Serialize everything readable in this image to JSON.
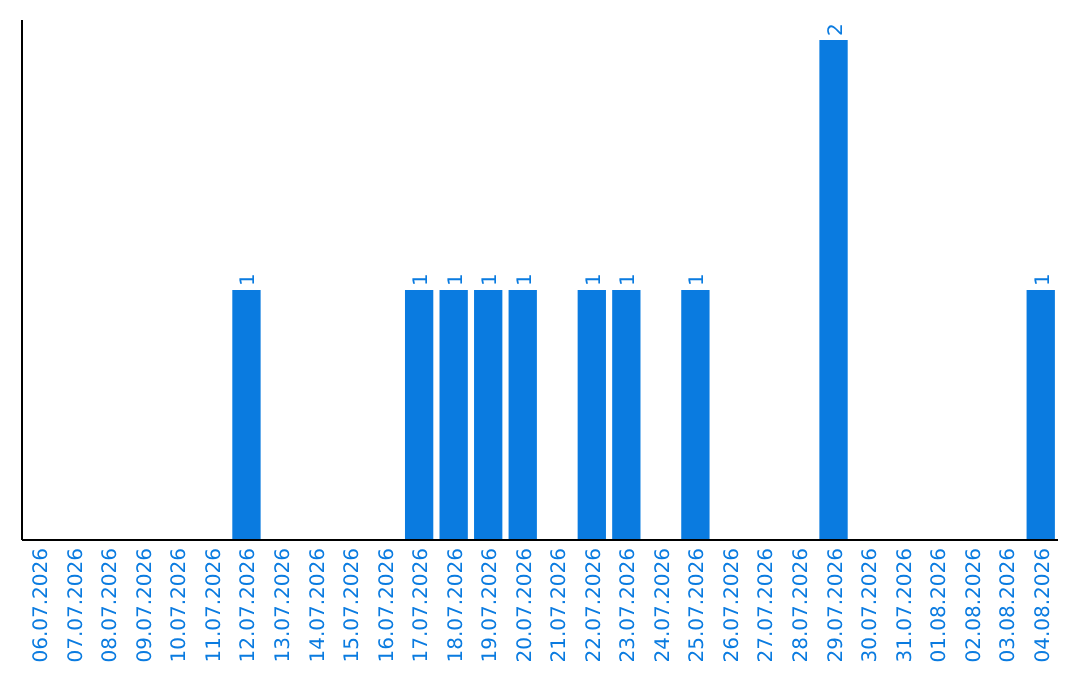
{
  "chart_data": {
    "type": "bar",
    "categories": [
      "06.07.2026",
      "07.07.2026",
      "08.07.2026",
      "09.07.2026",
      "10.07.2026",
      "11.07.2026",
      "12.07.2026",
      "13.07.2026",
      "14.07.2026",
      "15.07.2026",
      "16.07.2026",
      "17.07.2026",
      "18.07.2026",
      "19.07.2026",
      "20.07.2026",
      "21.07.2026",
      "22.07.2026",
      "23.07.2026",
      "24.07.2026",
      "25.07.2026",
      "26.07.2026",
      "27.07.2026",
      "28.07.2026",
      "29.07.2026",
      "30.07.2026",
      "31.07.2026",
      "01.08.2026",
      "02.08.2026",
      "03.08.2026",
      "04.08.2026"
    ],
    "values": [
      0,
      0,
      0,
      0,
      0,
      0,
      1,
      0,
      0,
      0,
      0,
      1,
      1,
      1,
      1,
      0,
      1,
      1,
      0,
      1,
      0,
      0,
      0,
      2,
      0,
      0,
      0,
      0,
      0,
      1
    ],
    "value_labels": [
      null,
      null,
      null,
      null,
      null,
      null,
      "1",
      null,
      null,
      null,
      null,
      "1",
      "1",
      "1",
      "1",
      null,
      "1",
      "1",
      null,
      "1",
      null,
      null,
      null,
      "2",
      null,
      null,
      null,
      null,
      null,
      "1"
    ],
    "color": "#0a7be0"
  }
}
